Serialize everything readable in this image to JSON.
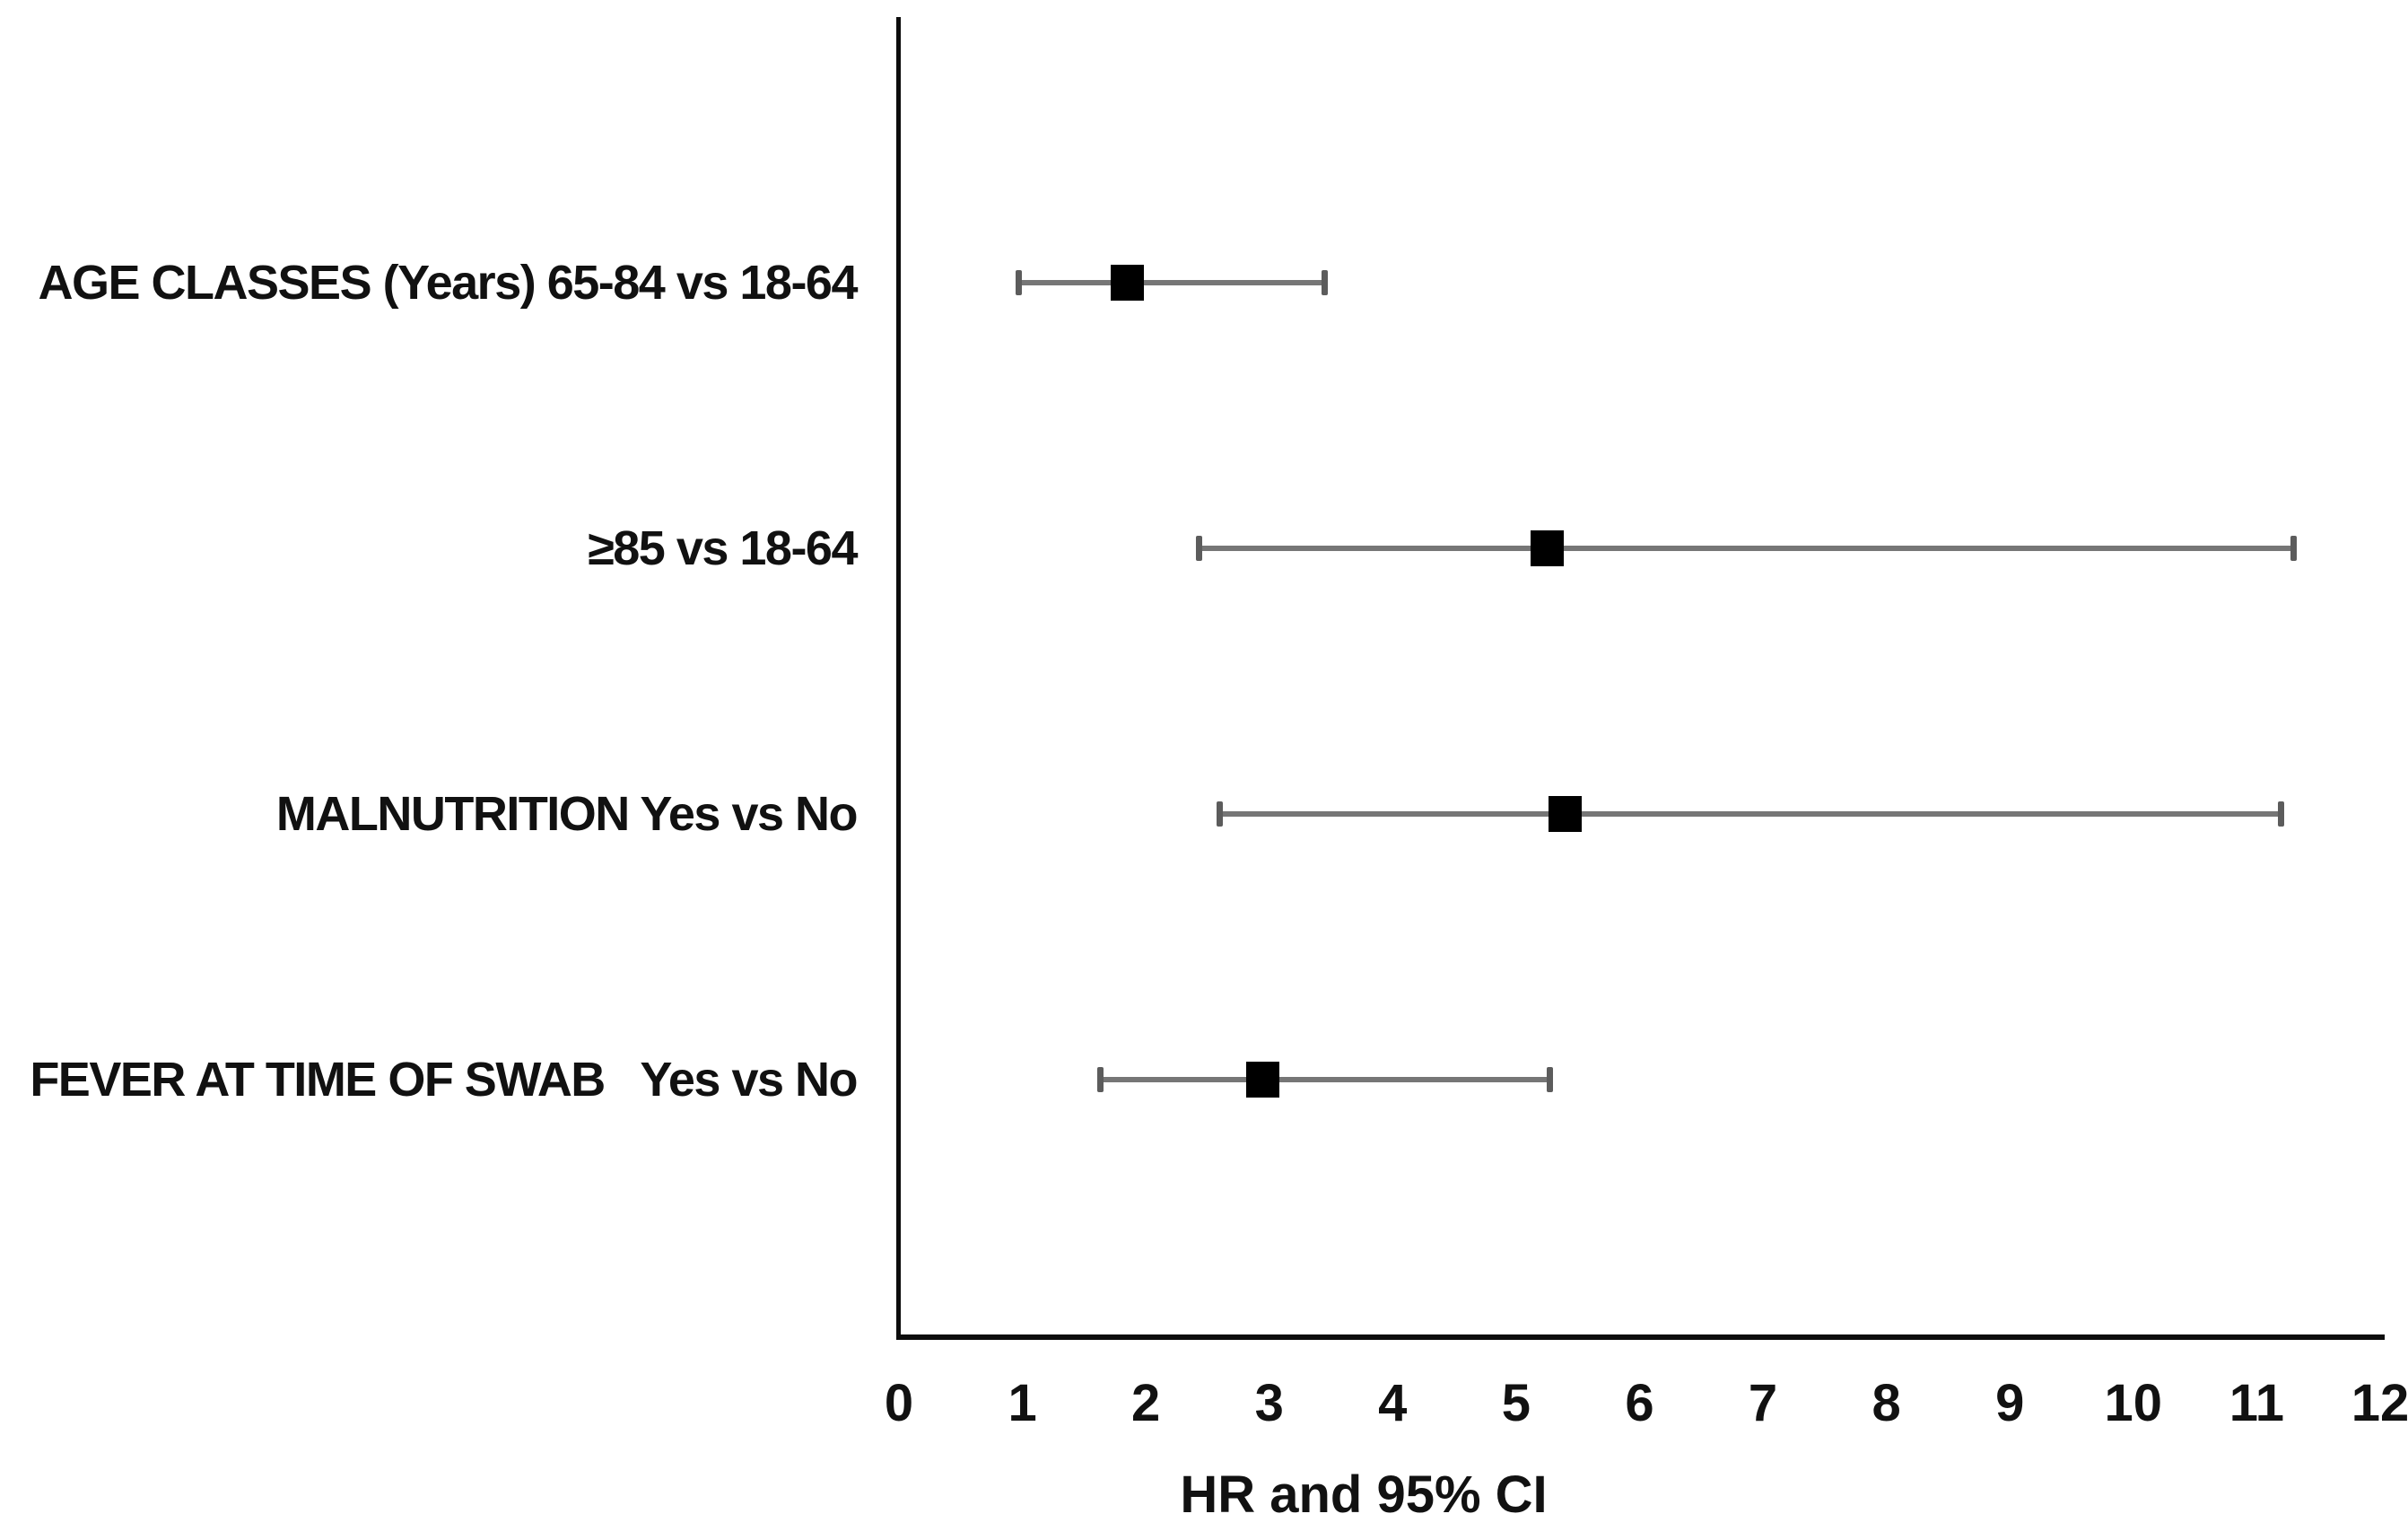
{
  "figure": {
    "background_color": "#ffffff",
    "text_color": "#111111"
  },
  "chart_data": {
    "type": "scatter",
    "variant": "forest-plot-horizontal-ci",
    "title": "",
    "xlabel": "HR and 95% CI",
    "ylabel": "",
    "xlim": [
      0,
      12
    ],
    "xtick_step": 1,
    "xticks": [
      "0",
      "1",
      "2",
      "3",
      "4",
      "5",
      "6",
      "7",
      "8",
      "9",
      "10",
      "11",
      "12"
    ],
    "grid": "off",
    "legend_position": "none",
    "rows": [
      {
        "label": "AGE CLASSES (Years) 65-84 vs 18-64",
        "hr": 1.85,
        "ci_low": 0.97,
        "ci_high": 3.45
      },
      {
        "label": "≥85 vs 18-64",
        "hr": 5.25,
        "ci_low": 2.43,
        "ci_high": 11.3
      },
      {
        "label": "MALNUTRITION Yes vs No",
        "hr": 5.4,
        "ci_low": 2.6,
        "ci_high": 11.2
      },
      {
        "label": "FEVER AT TIME OF SWAB   Yes vs No",
        "hr": 2.95,
        "ci_low": 1.63,
        "ci_high": 5.27
      }
    ],
    "colors": {
      "marker": "#000000",
      "ci_line": "#767676",
      "ci_cap": "#5c5c5c",
      "axis": "#0d0d0d"
    },
    "marker_shape": "square"
  }
}
